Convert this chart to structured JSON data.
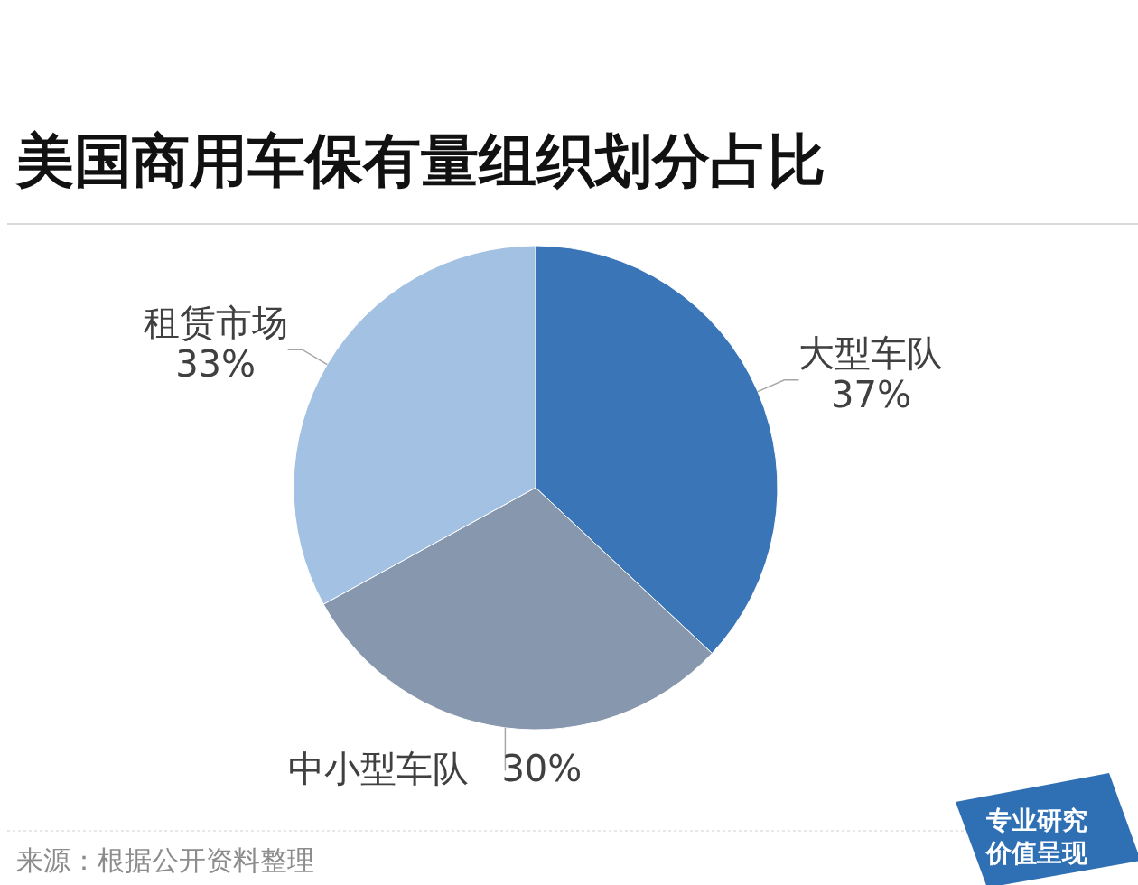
{
  "chart_data": {
    "type": "pie",
    "title": "美国商用车保有量组织划分占比",
    "categories": [
      "大型车队",
      "中小型车队",
      "租赁市场"
    ],
    "values": [
      37,
      30,
      33
    ],
    "colors": [
      "#3a75b8",
      "#8797ae",
      "#a3c1e3"
    ],
    "value_labels": [
      "37%",
      "30%",
      "33%"
    ],
    "annotations": [
      "来源：根据公开资料整理",
      "专业研究",
      "价值呈现"
    ]
  }
}
